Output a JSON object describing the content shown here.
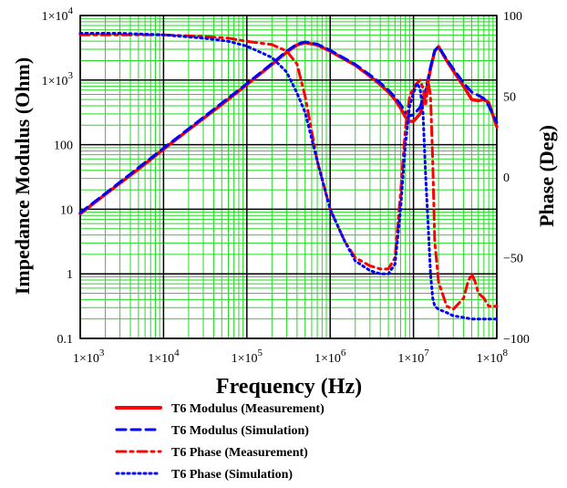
{
  "chart_data": {
    "type": "line",
    "xlabel": "Frequency (Hz)",
    "ylabel": "Impedance Modulus (Ohm)",
    "y2label": "Phase (Deg)",
    "x_scale": "log",
    "y_scale": "log",
    "xlim": [
      1000,
      100000000
    ],
    "ylim": [
      0.1,
      10000
    ],
    "y2lim": [
      -100,
      100
    ],
    "grid": true,
    "legend_position": "bottom",
    "x_ticks": [
      {
        "value": 1000,
        "base": "1×10",
        "exp": "3"
      },
      {
        "value": 10000,
        "base": "1×10",
        "exp": "4"
      },
      {
        "value": 100000,
        "base": "1×10",
        "exp": "5"
      },
      {
        "value": 1000000,
        "base": "1×10",
        "exp": "6"
      },
      {
        "value": 10000000,
        "base": "1×10",
        "exp": "7"
      },
      {
        "value": 100000000,
        "base": "1×10",
        "exp": "8"
      }
    ],
    "y_ticks": [
      {
        "value": 10000,
        "base": "1×10",
        "exp": "4"
      },
      {
        "value": 1000,
        "base": "1×10",
        "exp": "3"
      },
      {
        "value": 100,
        "base": "100",
        "exp": ""
      },
      {
        "value": 10,
        "base": "10",
        "exp": ""
      },
      {
        "value": 1,
        "base": "1",
        "exp": ""
      },
      {
        "value": 0.1,
        "base": "0.1",
        "exp": ""
      }
    ],
    "y2_ticks": [
      {
        "value": 100,
        "label": "100"
      },
      {
        "value": 50,
        "label": "50"
      },
      {
        "value": 0,
        "label": "0"
      },
      {
        "value": -50,
        "label": "−50"
      },
      {
        "value": -100,
        "label": "−100"
      }
    ],
    "series": [
      {
        "name": "T6 Modulus (Measurement)",
        "axis": "left",
        "color": "#ff0000",
        "dash": "solid",
        "x": [
          1000,
          2000,
          5000,
          10000,
          20000,
          50000,
          100000,
          200000,
          300000,
          400000,
          500000,
          700000,
          1000000,
          2000000,
          3000000,
          4000000,
          5000000,
          6000000,
          7000000,
          8000000,
          9000000,
          10000000,
          12000000,
          14000000,
          16000000,
          18000000,
          20000000,
          25000000,
          30000000,
          40000000,
          50000000,
          60000000,
          70000000,
          80000000,
          100000000
        ],
        "y": [
          8.5,
          17,
          42,
          85,
          170,
          420,
          850,
          1750,
          2700,
          3500,
          3800,
          3500,
          2800,
          1700,
          1150,
          850,
          650,
          500,
          370,
          270,
          230,
          230,
          300,
          600,
          1500,
          2800,
          3300,
          2000,
          1400,
          800,
          500,
          480,
          500,
          450,
          190
        ]
      },
      {
        "name": "T6 Modulus (Simulation)",
        "axis": "left",
        "color": "#0000ff",
        "dash": "dashed",
        "x": [
          1000,
          2000,
          5000,
          10000,
          20000,
          50000,
          100000,
          200000,
          300000,
          400000,
          500000,
          700000,
          1000000,
          2000000,
          3000000,
          4000000,
          5000000,
          6000000,
          7000000,
          8000000,
          9000000,
          10000000,
          12000000,
          14000000,
          16000000,
          18000000,
          20000000,
          25000000,
          30000000,
          40000000,
          50000000,
          60000000,
          70000000,
          80000000,
          100000000
        ],
        "y": [
          8.8,
          17.5,
          44,
          88,
          176,
          440,
          880,
          1800,
          2800,
          3600,
          3900,
          3600,
          2900,
          1750,
          1200,
          900,
          700,
          540,
          420,
          320,
          280,
          290,
          380,
          700,
          1600,
          2900,
          3300,
          2100,
          1500,
          900,
          650,
          580,
          520,
          400,
          220
        ]
      },
      {
        "name": "T6 Phase (Measurement)",
        "axis": "right",
        "color": "#ff0000",
        "dash": "dashdot",
        "x": [
          1000,
          3000,
          10000,
          30000,
          60000,
          100000,
          200000,
          300000,
          400000,
          500000,
          700000,
          1000000,
          1500000,
          2000000,
          3000000,
          4000000,
          5000000,
          6000000,
          7000000,
          8000000,
          9000000,
          10000000,
          11000000,
          12000000,
          13000000,
          14000000,
          15000000,
          16000000,
          17000000,
          18000000,
          20000000,
          25000000,
          30000000,
          40000000,
          45000000,
          50000000,
          55000000,
          60000000,
          70000000,
          80000000,
          100000000
        ],
        "y": [
          88,
          88,
          88,
          87,
          86,
          84,
          82,
          78,
          70,
          50,
          10,
          -20,
          -40,
          -50,
          -55,
          -57,
          -57,
          -50,
          -10,
          30,
          50,
          55,
          58,
          60,
          55,
          45,
          60,
          50,
          10,
          -40,
          -65,
          -80,
          -82,
          -75,
          -65,
          -60,
          -65,
          -72,
          -75,
          -80,
          -80
        ]
      },
      {
        "name": "T6 Phase (Simulation)",
        "axis": "right",
        "color": "#0000ff",
        "dash": "dotted",
        "x": [
          1000,
          3000,
          10000,
          30000,
          60000,
          100000,
          200000,
          300000,
          400000,
          500000,
          700000,
          1000000,
          1500000,
          2000000,
          3000000,
          4000000,
          5000000,
          6000000,
          7000000,
          8000000,
          9000000,
          10000000,
          11000000,
          12000000,
          13000000,
          14000000,
          15000000,
          16000000,
          17000000,
          18000000,
          20000000,
          25000000,
          30000000,
          40000000,
          50000000,
          70000000,
          100000000
        ],
        "y": [
          89,
          89,
          88,
          86,
          84,
          81,
          74,
          65,
          52,
          40,
          10,
          -20,
          -40,
          -52,
          -58,
          -60,
          -60,
          -54,
          -20,
          20,
          44,
          52,
          58,
          55,
          40,
          0,
          -30,
          -60,
          -75,
          -80,
          -82,
          -84,
          -86,
          -87,
          -88,
          -88,
          -88
        ]
      }
    ]
  }
}
